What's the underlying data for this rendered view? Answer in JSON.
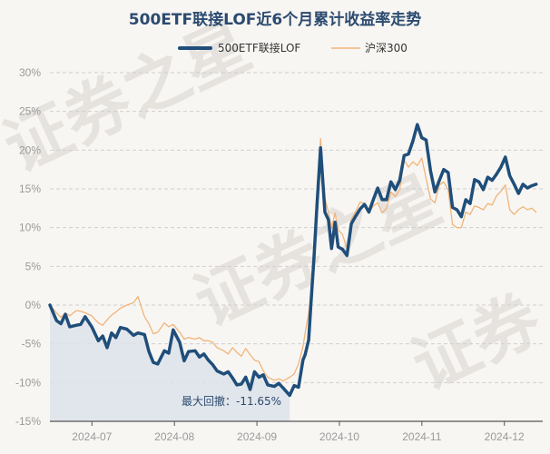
{
  "chart_data": {
    "type": "line",
    "title": "500ETF联接LOF近6个月累计收益率走势",
    "xlabel": "",
    "ylabel": "",
    "x_ticks": [
      "2024-07",
      "2024-08",
      "2024-09",
      "2024-10",
      "2024-11",
      "2024-12"
    ],
    "y_ticks": [
      "30%",
      "25%",
      "20%",
      "15%",
      "10%",
      "5%",
      "0%",
      "-5%",
      "-10%",
      "-15%"
    ],
    "ylim": [
      -15,
      30
    ],
    "grid": "horizontal-dashed",
    "legend_position": "top-center",
    "series": [
      {
        "name": "500ETF联接LOF",
        "color": "#1f4e7a",
        "values": [
          [
            0,
            0
          ],
          [
            1.5,
            -2
          ],
          [
            2.5,
            -2.4
          ],
          [
            3.5,
            -1.2
          ],
          [
            4.5,
            -2.8
          ],
          [
            6,
            -2.6
          ],
          [
            7,
            -2.5
          ],
          [
            8,
            -1.5
          ],
          [
            9.5,
            -2.8
          ],
          [
            11,
            -4.6
          ],
          [
            12,
            -4
          ],
          [
            13,
            -5.5
          ],
          [
            14,
            -3.6
          ],
          [
            15,
            -4.2
          ],
          [
            16,
            -2.9
          ],
          [
            17.5,
            -3.1
          ],
          [
            19,
            -3.9
          ],
          [
            20,
            -3.6
          ],
          [
            21.5,
            -3.8
          ],
          [
            22.5,
            -6
          ],
          [
            23.5,
            -7.4
          ],
          [
            24.5,
            -7.6
          ],
          [
            26,
            -5.9
          ],
          [
            27,
            -6.2
          ],
          [
            28,
            -3.2
          ],
          [
            29.5,
            -4.8
          ],
          [
            30.5,
            -7.2
          ],
          [
            31.5,
            -6
          ],
          [
            33,
            -5.9
          ],
          [
            34,
            -6.7
          ],
          [
            35,
            -6.3
          ],
          [
            36,
            -7.1
          ],
          [
            37,
            -7.7
          ],
          [
            38,
            -8.5
          ],
          [
            39.5,
            -8.9
          ],
          [
            40.5,
            -8.6
          ],
          [
            41.5,
            -9.4
          ],
          [
            42.5,
            -10.3
          ],
          [
            43.5,
            -10.2
          ],
          [
            44.5,
            -9.3
          ],
          [
            45.5,
            -10.9
          ],
          [
            46.5,
            -8.6
          ],
          [
            47.5,
            -9.3
          ],
          [
            48.5,
            -9
          ],
          [
            49.5,
            -10.3
          ],
          [
            51,
            -10.5
          ],
          [
            52,
            -10.1
          ],
          [
            53,
            -10.7
          ],
          [
            54.5,
            -11.65
          ],
          [
            55.5,
            -10.4
          ],
          [
            56.5,
            -10.6
          ],
          [
            57.5,
            -7.1
          ],
          [
            58,
            -6.4
          ],
          [
            58.8,
            -4.5
          ],
          [
            59.3,
            0
          ],
          [
            60,
            6
          ],
          [
            60.7,
            13
          ],
          [
            61.5,
            20.3
          ],
          [
            62.5,
            12
          ],
          [
            63.3,
            11
          ],
          [
            64,
            7.3
          ],
          [
            64.8,
            10.7
          ],
          [
            65.5,
            7.5
          ],
          [
            66.5,
            7.2
          ],
          [
            67.5,
            6.4
          ],
          [
            68.5,
            10.5
          ],
          [
            69.5,
            11.5
          ],
          [
            70.5,
            12.4
          ],
          [
            71.5,
            13
          ],
          [
            72.5,
            12
          ],
          [
            73.5,
            13.6
          ],
          [
            74.5,
            15.1
          ],
          [
            75.5,
            13.6
          ],
          [
            76.5,
            13.6
          ],
          [
            77.5,
            15.9
          ],
          [
            78.5,
            14.9
          ],
          [
            79.5,
            16.1
          ],
          [
            80.5,
            19.3
          ],
          [
            81.5,
            19.5
          ],
          [
            82.5,
            21.2
          ],
          [
            83.5,
            23.3
          ],
          [
            84.5,
            21.6
          ],
          [
            85.5,
            21.3
          ],
          [
            86.5,
            17.3
          ],
          [
            87.5,
            14.6
          ],
          [
            88.5,
            16.1
          ],
          [
            89.5,
            17.5
          ],
          [
            90.5,
            17.1
          ],
          [
            91.5,
            12.6
          ],
          [
            92.5,
            12.3
          ],
          [
            93.5,
            11.4
          ],
          [
            94.5,
            13.6
          ],
          [
            95.5,
            13.1
          ],
          [
            96.5,
            16.2
          ],
          [
            97.5,
            15.9
          ],
          [
            98.5,
            14.9
          ],
          [
            99.5,
            16.5
          ],
          [
            100.5,
            16.1
          ],
          [
            101.5,
            16.9
          ],
          [
            102.5,
            17.8
          ],
          [
            103.5,
            19.1
          ],
          [
            104.5,
            16.7
          ],
          [
            105.5,
            15.6
          ],
          [
            106.5,
            14.4
          ],
          [
            107.5,
            15.6
          ],
          [
            108.5,
            15.1
          ],
          [
            109.5,
            15.4
          ],
          [
            110.5,
            15.6
          ]
        ]
      },
      {
        "name": "沪深300",
        "color": "#f0b47a",
        "values": [
          [
            0,
            0
          ],
          [
            1.5,
            -1
          ],
          [
            2.5,
            -1.6
          ],
          [
            3.5,
            -1
          ],
          [
            4.5,
            -1.4
          ],
          [
            6,
            -0.7
          ],
          [
            7,
            -0.8
          ],
          [
            8,
            -1
          ],
          [
            9.5,
            -1.4
          ],
          [
            11,
            -2.3
          ],
          [
            12,
            -2.6
          ],
          [
            13,
            -1.9
          ],
          [
            14,
            -1.3
          ],
          [
            15,
            -0.9
          ],
          [
            16,
            -0.4
          ],
          [
            17.5,
            0
          ],
          [
            19,
            0.3
          ],
          [
            20,
            1.1
          ],
          [
            21.5,
            -1.5
          ],
          [
            22.5,
            -2.4
          ],
          [
            23.5,
            -3.7
          ],
          [
            24.5,
            -3.5
          ],
          [
            26,
            -2.3
          ],
          [
            27,
            -2.8
          ],
          [
            28,
            -2.5
          ],
          [
            29.5,
            -3.5
          ],
          [
            30.5,
            -4.4
          ],
          [
            31.5,
            -4.2
          ],
          [
            33,
            -4.4
          ],
          [
            34,
            -4.2
          ],
          [
            35,
            -4.6
          ],
          [
            36,
            -4.6
          ],
          [
            37,
            -4.8
          ],
          [
            38,
            -5.5
          ],
          [
            39.5,
            -5.9
          ],
          [
            40.5,
            -6.3
          ],
          [
            41.5,
            -5.5
          ],
          [
            42.5,
            -6.1
          ],
          [
            43.5,
            -6.6
          ],
          [
            44.5,
            -5.6
          ],
          [
            45.5,
            -6.4
          ],
          [
            46.5,
            -7.1
          ],
          [
            47.5,
            -7.3
          ],
          [
            48.5,
            -8.5
          ],
          [
            49.5,
            -9.3
          ],
          [
            51,
            -9.7
          ],
          [
            52,
            -9.5
          ],
          [
            53,
            -9.8
          ],
          [
            54.5,
            -9.3
          ],
          [
            55.5,
            -8.9
          ],
          [
            56.5,
            -7.6
          ],
          [
            57.5,
            -5.4
          ],
          [
            58,
            -3.6
          ],
          [
            58.8,
            -1
          ],
          [
            59.3,
            1.5
          ],
          [
            60,
            5.5
          ],
          [
            60.7,
            12
          ],
          [
            61.5,
            21.5
          ],
          [
            62.5,
            13.7
          ],
          [
            63.3,
            12
          ],
          [
            64,
            9.9
          ],
          [
            64.8,
            11.9
          ],
          [
            65.5,
            9.7
          ],
          [
            66.5,
            9.1
          ],
          [
            67.5,
            7.3
          ],
          [
            68.5,
            11.1
          ],
          [
            69.5,
            12.1
          ],
          [
            70.5,
            13.3
          ],
          [
            71.5,
            13.1
          ],
          [
            72.5,
            11.9
          ],
          [
            73.5,
            12.8
          ],
          [
            74.5,
            13.2
          ],
          [
            75.5,
            11.9
          ],
          [
            76.5,
            12.5
          ],
          [
            77.5,
            14.6
          ],
          [
            78.5,
            14
          ],
          [
            79.5,
            14.9
          ],
          [
            80.5,
            18.7
          ],
          [
            81.5,
            17.8
          ],
          [
            82.5,
            18.5
          ],
          [
            83.5,
            18
          ],
          [
            84.5,
            19
          ],
          [
            85.5,
            16.3
          ],
          [
            86.5,
            13.7
          ],
          [
            87.5,
            13.2
          ],
          [
            88.5,
            15.5
          ],
          [
            89.5,
            15.9
          ],
          [
            90.5,
            14.9
          ],
          [
            91.5,
            10.4
          ],
          [
            92.5,
            10
          ],
          [
            93.5,
            10
          ],
          [
            94.5,
            12
          ],
          [
            95.5,
            11.7
          ],
          [
            96.5,
            12.8
          ],
          [
            97.5,
            12.6
          ],
          [
            98.5,
            12.3
          ],
          [
            99.5,
            13.1
          ],
          [
            100.5,
            12.9
          ],
          [
            101.5,
            14.1
          ],
          [
            102.5,
            14.7
          ],
          [
            103.5,
            15.5
          ],
          [
            104.5,
            12.3
          ],
          [
            105.5,
            11.7
          ],
          [
            106.5,
            12.3
          ],
          [
            107.5,
            12.7
          ],
          [
            108.5,
            12.3
          ],
          [
            109.5,
            12.5
          ],
          [
            110.5,
            12
          ]
        ]
      }
    ],
    "drawdown": {
      "label": "最大回撤：-11.65%",
      "value": -11.65,
      "x_start": 0,
      "x_end": 54.5,
      "fill_color": "#dde3ea"
    },
    "watermark": "证券之星"
  }
}
